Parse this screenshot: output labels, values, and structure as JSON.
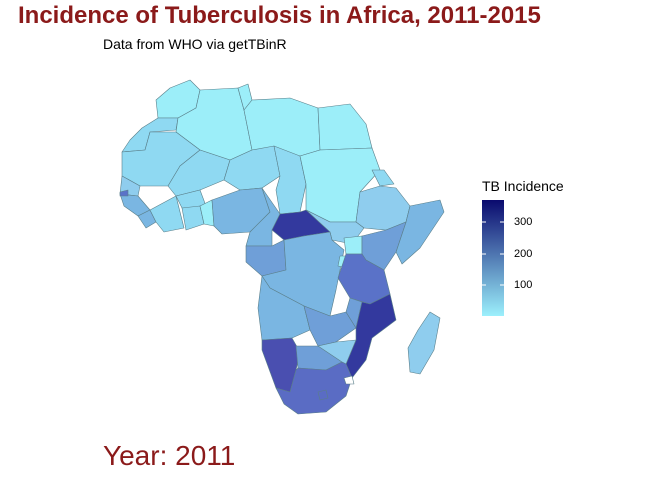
{
  "title": "Incidence of Tuberculosis in Africa, 2011-2015",
  "subtitle": "Data from WHO via getTBinR",
  "year_label": "Year: 2011",
  "legend": {
    "title": "TB Incidence",
    "ticks": [
      "300",
      "200",
      "100"
    ],
    "color_low": "#9cf0fc",
    "color_high": "#0a0a6e"
  },
  "colors": {
    "title": "#8b1a1a",
    "border": "#5a7f8a"
  }
}
